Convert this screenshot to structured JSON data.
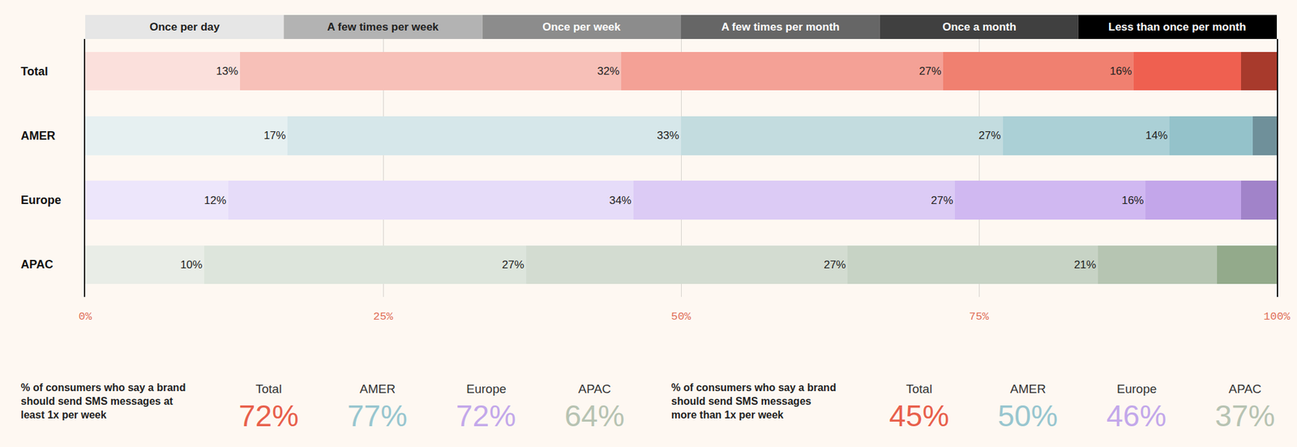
{
  "chart_data": {
    "type": "bar",
    "orientation": "horizontal",
    "stacked": true,
    "legend": "top",
    "grid": true,
    "categories": [
      "Total",
      "AMER",
      "Europe",
      "APAC"
    ],
    "xlim": [
      0,
      100
    ],
    "xticks": [
      {
        "value": 0,
        "label": "0%"
      },
      {
        "value": 25,
        "label": "25%"
      },
      {
        "value": 50,
        "label": "50%"
      },
      {
        "value": 75,
        "label": "75%"
      },
      {
        "value": 100,
        "label": "100%"
      }
    ],
    "series": [
      {
        "name": "Once per day",
        "color": "#e6e6e6",
        "colors": [
          "#fbe0dc",
          "#e6f0f1",
          "#ede6fb",
          "#e9ede7"
        ],
        "values": [
          13,
          17,
          12,
          10
        ],
        "value_labels": [
          "13%",
          "17%",
          "12%",
          "10%"
        ],
        "data_labels": true
      },
      {
        "name": "A few times per week",
        "color": "#b3b3b3",
        "colors": [
          "#f7c0b8",
          "#d6e7ea",
          "#e6dcf9",
          "#dde5dc"
        ],
        "values": [
          32,
          33,
          34,
          27
        ],
        "value_labels": [
          "32%",
          "33%",
          "34%",
          "27%"
        ],
        "data_labels": true
      },
      {
        "name": "Once per week",
        "color": "#8c8c8c",
        "colors": [
          "#f4a196",
          "#c3dcdf",
          "#dccbf5",
          "#d3dcd1"
        ],
        "values": [
          27,
          27,
          27,
          27
        ],
        "value_labels": [
          "27%",
          "27%",
          "27%",
          "27%"
        ],
        "data_labels": true
      },
      {
        "name": "A few times per month",
        "color": "#666666",
        "colors": [
          "#f08070",
          "#abd0d6",
          "#d0b8f1",
          "#c7d3c5"
        ],
        "values": [
          16,
          14,
          16,
          21
        ],
        "value_labels": [
          "16%",
          "14%",
          "16%",
          "21%"
        ],
        "data_labels": true
      },
      {
        "name": "Once a month",
        "color": "#404040",
        "colors": [
          "#ef6050",
          "#94c2ca",
          "#c3a6ea",
          "#b6c5b2"
        ],
        "values": [
          9,
          7,
          8,
          10
        ],
        "data_labels": false
      },
      {
        "name": "Less than once per month",
        "color": "#000000",
        "colors": [
          "#a83a2c",
          "#6f909a",
          "#a183c9",
          "#93aa8b"
        ],
        "values": [
          3,
          2,
          3,
          5
        ],
        "data_labels": false
      }
    ],
    "summaries": [
      {
        "lines": [
          "% of consumers who say a brand",
          "should send SMS messages at",
          "least 1x per week"
        ],
        "values": [
          {
            "name": "Total",
            "value": 72,
            "label": "72%",
            "color": "#e8604c"
          },
          {
            "name": "AMER",
            "value": 77,
            "label": "77%",
            "color": "#98c6cf"
          },
          {
            "name": "Europe",
            "value": 72,
            "label": "72%",
            "color": "#c3a8ea"
          },
          {
            "name": "APAC",
            "value": 64,
            "label": "64%",
            "color": "#b7c3b2"
          }
        ]
      },
      {
        "lines": [
          "% of consumers who say a brand",
          "should send SMS messages",
          "more than 1x per week"
        ],
        "values": [
          {
            "name": "Total",
            "value": 45,
            "label": "45%",
            "color": "#e8604c"
          },
          {
            "name": "AMER",
            "value": 50,
            "label": "50%",
            "color": "#98c6cf"
          },
          {
            "name": "Europe",
            "value": 46,
            "label": "46%",
            "color": "#c3a8ea"
          },
          {
            "name": "APAC",
            "value": 37,
            "label": "37%",
            "color": "#b7c3b2"
          }
        ]
      }
    ]
  }
}
